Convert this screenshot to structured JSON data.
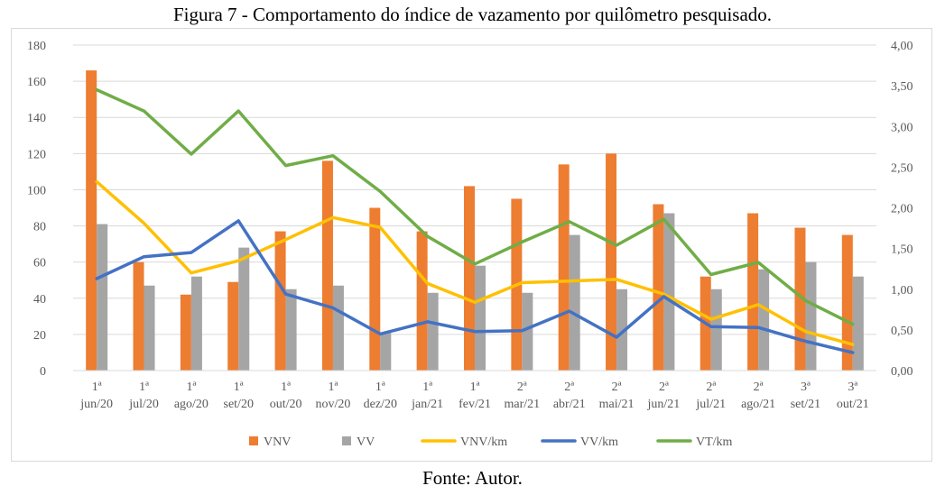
{
  "figure": {
    "title": "Figura 7 - Comportamento do índice de vazamento por quilômetro pesquisado.",
    "source": "Fonte: Autor."
  },
  "colors": {
    "VNV": "#ED7D31",
    "VV": "#A5A5A5",
    "VNV/km": "#FFC000",
    "VV/km": "#4472C4",
    "VT/km": "#70AD47",
    "grid": "#d9d9d9",
    "axis_text": "#595959"
  },
  "chart_data": {
    "type": "bar",
    "categories": [
      [
        "1ª",
        "jun/20"
      ],
      [
        "1ª",
        "jul/20"
      ],
      [
        "1ª",
        "ago/20"
      ],
      [
        "1ª",
        "set/20"
      ],
      [
        "1ª",
        "out/20"
      ],
      [
        "1ª",
        "nov/20"
      ],
      [
        "1ª",
        "dez/20"
      ],
      [
        "1ª",
        "jan/21"
      ],
      [
        "1ª",
        "fev/21"
      ],
      [
        "2ª",
        "mar/21"
      ],
      [
        "2ª",
        "abr/21"
      ],
      [
        "2ª",
        "mai/21"
      ],
      [
        "2ª",
        "jun/21"
      ],
      [
        "2ª",
        "jul/21"
      ],
      [
        "2ª",
        "ago/21"
      ],
      [
        "3ª",
        "set/21"
      ],
      [
        "3ª",
        "out/21"
      ]
    ],
    "y_left": {
      "ylim": [
        0,
        180
      ],
      "ticks": [
        "0",
        "20",
        "40",
        "60",
        "80",
        "100",
        "120",
        "140",
        "160",
        "180"
      ]
    },
    "y_right": {
      "ylim": [
        0,
        4
      ],
      "ticks": [
        "0,00",
        "0,50",
        "1,00",
        "1,50",
        "2,00",
        "2,50",
        "3,00",
        "3,50",
        "4,00"
      ]
    },
    "series": [
      {
        "name": "VNV",
        "type": "bar",
        "axis": "left",
        "values": [
          166,
          60,
          42,
          49,
          77,
          116,
          90,
          77,
          102,
          95,
          114,
          120,
          92,
          52,
          87,
          79,
          75
        ]
      },
      {
        "name": "VV",
        "type": "bar",
        "axis": "left",
        "values": [
          81,
          47,
          52,
          68,
          45,
          47,
          21,
          43,
          58,
          43,
          75,
          45,
          87,
          45,
          56,
          60,
          52
        ]
      },
      {
        "name": "VNV/km",
        "type": "line",
        "axis": "right",
        "values": [
          2.32,
          1.81,
          1.2,
          1.35,
          1.61,
          1.88,
          1.76,
          1.07,
          0.84,
          1.08,
          1.1,
          1.12,
          0.94,
          0.63,
          0.81,
          0.48,
          0.32
        ]
      },
      {
        "name": "VV/km",
        "type": "line",
        "axis": "right",
        "values": [
          1.13,
          1.4,
          1.45,
          1.84,
          0.94,
          0.77,
          0.45,
          0.6,
          0.48,
          0.49,
          0.73,
          0.41,
          0.91,
          0.54,
          0.53,
          0.36,
          0.22
        ]
      },
      {
        "name": "VT/km",
        "type": "line",
        "axis": "right",
        "values": [
          3.45,
          3.19,
          2.66,
          3.19,
          2.52,
          2.64,
          2.2,
          1.65,
          1.31,
          1.58,
          1.83,
          1.54,
          1.86,
          1.18,
          1.33,
          0.86,
          0.57
        ]
      }
    ],
    "legend": {
      "placement": "bottom",
      "items": [
        "VNV",
        "VV",
        "VNV/km",
        "VV/km",
        "VT/km"
      ]
    },
    "grid": true
  }
}
